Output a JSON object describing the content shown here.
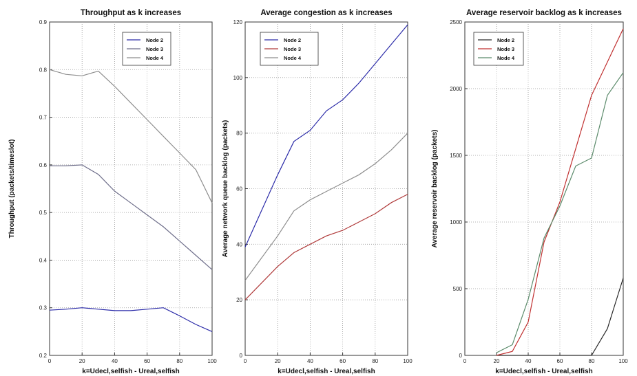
{
  "chart_data": [
    {
      "type": "line",
      "title": "Throughput as k increases",
      "xlabel": "k=Udecl,selfish - Ureal,selfish",
      "ylabel": "Throughput (packets/timeslot)",
      "xlim": [
        0,
        100
      ],
      "ylim": [
        0.2,
        0.9
      ],
      "xticks": [
        "0",
        "20",
        "40",
        "60",
        "80",
        "100"
      ],
      "yticks": [
        "0.2",
        "0.3",
        "0.4",
        "0.5",
        "0.6",
        "0.7",
        "0.8",
        "0.9"
      ],
      "grid": true,
      "legend_position": "top-right",
      "x": [
        0,
        10,
        20,
        30,
        40,
        50,
        60,
        70,
        80,
        90,
        100
      ],
      "series": [
        {
          "name": "Node 2",
          "color": "#2a2aa8",
          "values": [
            0.295,
            0.297,
            0.3,
            0.297,
            0.294,
            0.294,
            0.297,
            0.3,
            0.283,
            0.265,
            0.25
          ]
        },
        {
          "name": "Node 3",
          "color": "#6e6e8a",
          "values": [
            0.598,
            0.598,
            0.6,
            0.58,
            0.545,
            0.52,
            0.495,
            0.47,
            0.44,
            0.41,
            0.38
          ]
        },
        {
          "name": "Node 4",
          "color": "#8e8e8e",
          "values": [
            0.8,
            0.79,
            0.787,
            0.797,
            0.765,
            0.73,
            0.695,
            0.66,
            0.625,
            0.59,
            0.52
          ]
        }
      ]
    },
    {
      "type": "line",
      "title": "Average congestion as k increases",
      "xlabel": "k=Udecl,selfish - Ureal,selfish",
      "ylabel": "Average network queue backlog (packets)",
      "xlim": [
        0,
        100
      ],
      "ylim": [
        0,
        120
      ],
      "xticks": [
        "0",
        "20",
        "40",
        "60",
        "80",
        "100"
      ],
      "yticks": [
        "0",
        "20",
        "40",
        "60",
        "80",
        "100",
        "120"
      ],
      "grid": true,
      "legend_position": "top-left",
      "x": [
        0,
        10,
        20,
        30,
        40,
        50,
        60,
        70,
        80,
        90,
        100
      ],
      "series": [
        {
          "name": "Node 2",
          "color": "#2a2aa8",
          "values": [
            39,
            52,
            65,
            77,
            81,
            88,
            92,
            98,
            105,
            112,
            119
          ]
        },
        {
          "name": "Node 3",
          "color": "#b03a3a",
          "values": [
            20,
            26,
            32,
            37,
            40,
            43,
            45,
            48,
            51,
            55,
            58
          ]
        },
        {
          "name": "Node 4",
          "color": "#8e8e8e",
          "values": [
            27,
            35,
            43,
            52,
            56,
            59,
            62,
            65,
            69,
            74,
            80
          ]
        }
      ]
    },
    {
      "type": "line",
      "title": "Average reservoir backlog as k increases",
      "xlabel": "k=Udecl,selfish - Ureal,selfish",
      "ylabel": "Average reservoir backlog (packets)",
      "xlim": [
        0,
        100
      ],
      "ylim": [
        0,
        2500
      ],
      "xticks": [
        "0",
        "20",
        "40",
        "60",
        "80",
        "100"
      ],
      "yticks": [
        "0",
        "500",
        "1000",
        "1500",
        "2000",
        "2500"
      ],
      "grid": true,
      "legend_position": "top-left",
      "x": [
        0,
        10,
        20,
        30,
        40,
        50,
        60,
        70,
        80,
        90,
        100
      ],
      "series": [
        {
          "name": "Node 2",
          "color": "#2a2a2a",
          "values": [
            null,
            null,
            0,
            0,
            0,
            0,
            0,
            0,
            0,
            200,
            580
          ]
        },
        {
          "name": "Node 3",
          "color": "#c03030",
          "values": [
            null,
            null,
            0,
            30,
            250,
            850,
            1150,
            1550,
            1950,
            2200,
            2450
          ]
        },
        {
          "name": "Node 4",
          "color": "#5a8a6a",
          "values": [
            null,
            null,
            20,
            80,
            420,
            880,
            1120,
            1420,
            1480,
            1950,
            2120
          ]
        }
      ]
    }
  ]
}
